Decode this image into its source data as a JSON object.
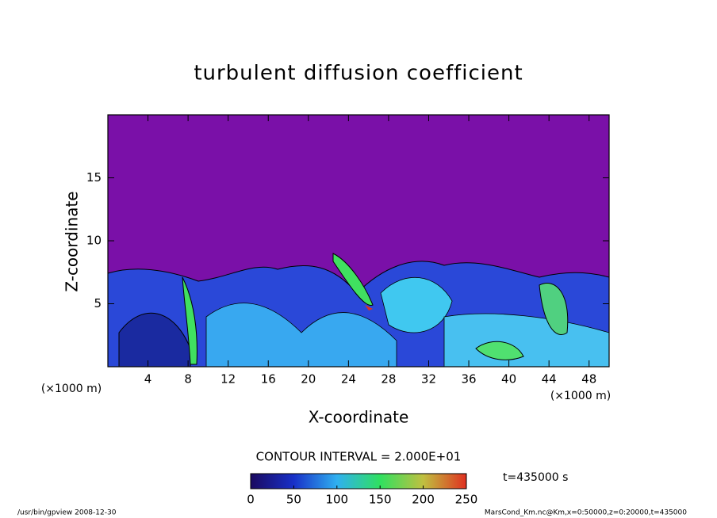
{
  "chart_data": {
    "type": "contour",
    "title": "turbulent diffusion coefficient",
    "x_label": "X-coordinate",
    "y_label": "Z-coordinate",
    "x_unit_label": "(×1000 m)",
    "y_unit_label": "(×1000 m)",
    "xlim": [
      0,
      50
    ],
    "xticks": [
      4,
      8,
      12,
      16,
      20,
      24,
      28,
      32,
      36,
      40,
      44,
      48
    ],
    "ylim": [
      0,
      20
    ],
    "yticks": [
      5,
      10,
      15
    ],
    "contour_interval_label": "CONTOUR INTERVAL = 2.000E+01",
    "time_label": "t=435000 s",
    "colorbar": {
      "lim": [
        0,
        250
      ],
      "ticks": [
        0,
        50,
        100,
        150,
        200,
        250
      ]
    },
    "footer_left": "/usr/bin/gpview  2008-12-30",
    "footer_right": "MarsCond_Km.nc@Km,x=0:50000,z=0:20000,t=435000"
  }
}
